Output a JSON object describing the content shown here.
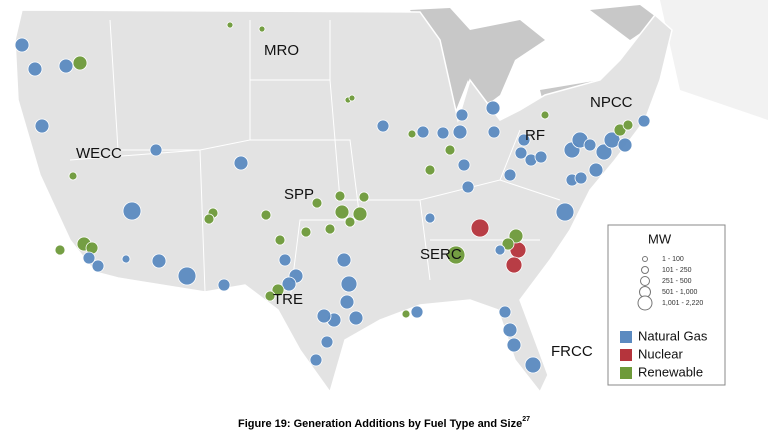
{
  "map": {
    "regions": [
      "MRO",
      "WECC",
      "SPP",
      "RF",
      "NPCC",
      "SERC",
      "TRE",
      "FRCC"
    ],
    "legend": {
      "title": "MW",
      "sizes": [
        "1 - 100",
        "101 - 250",
        "251 - 500",
        "501 - 1,000",
        "1,001 - 2,220"
      ],
      "fuels": [
        {
          "name": "Natural Gas",
          "color": "#5b8ac0"
        },
        {
          "name": "Nuclear",
          "color": "#b5343c"
        },
        {
          "name": "Renewable",
          "color": "#6e9a3a"
        }
      ]
    }
  },
  "caption": {
    "text": "Figure 19: Generation Additions by Fuel Type and Size",
    "note": "27"
  }
}
